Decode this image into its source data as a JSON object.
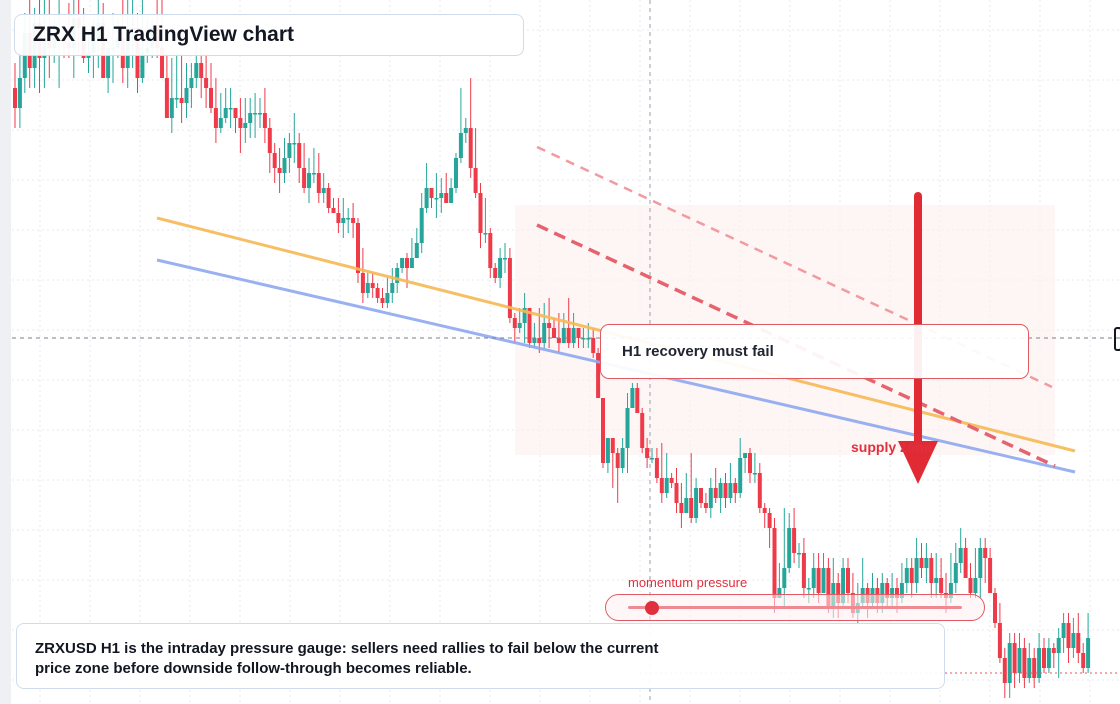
{
  "header": {
    "title": "ZRX H1 TradingView chart"
  },
  "annotations": {
    "callout": "H1 recovery must fail",
    "supply_label": "supply zone",
    "momentum_label": "momentum pressure",
    "momentum_level": 0.07
  },
  "footer": {
    "note": "ZRXUSD H1 is the intraday pressure gauge: sellers need rallies to fail below the current price zone before downside follow-through becomes reliable."
  },
  "colors": {
    "up": "#26a69a",
    "down": "#ef3a4a",
    "trend_orange": "#f7b955",
    "trend_blue": "#8fa9f0",
    "supply": "#e05a64",
    "arrow": "#e02b35"
  },
  "chart_data": {
    "type": "candlestick",
    "title": "ZRX H1 TradingView chart",
    "timeframe": "H1",
    "grid": true,
    "candles": [
      [
        0,
        50,
        46,
        55,
        42
      ],
      [
        1,
        46,
        52,
        57,
        42
      ],
      [
        2,
        52,
        61,
        65,
        49
      ],
      [
        3,
        61,
        54,
        68,
        50
      ],
      [
        4,
        54,
        63,
        66,
        50
      ],
      [
        5,
        63,
        56,
        72,
        49
      ],
      [
        6,
        56,
        60,
        73,
        50
      ],
      [
        7,
        60,
        58,
        68,
        52
      ],
      [
        8,
        58,
        60,
        64,
        55
      ],
      [
        9,
        60,
        60,
        74,
        50
      ],
      [
        10,
        60,
        59,
        63,
        56
      ],
      [
        11,
        59,
        58,
        67,
        56
      ],
      [
        12,
        58,
        64,
        69,
        52
      ],
      [
        13,
        64,
        62,
        71,
        57
      ],
      [
        14,
        62,
        56,
        66,
        55
      ],
      [
        15,
        56,
        57,
        61,
        53
      ],
      [
        16,
        57,
        60,
        64,
        52
      ],
      [
        17,
        60,
        63,
        68,
        54
      ],
      [
        18,
        63,
        52,
        67,
        52
      ],
      [
        19,
        52,
        58,
        62,
        49
      ],
      [
        20,
        58,
        58,
        65,
        51
      ],
      [
        21,
        58,
        60,
        64,
        56
      ],
      [
        22,
        60,
        54,
        70,
        51
      ],
      [
        23,
        54,
        61,
        68,
        50
      ],
      [
        24,
        61,
        62,
        74,
        54
      ],
      [
        25,
        62,
        52,
        65,
        49
      ],
      [
        26,
        52,
        57,
        70,
        51
      ],
      [
        27,
        57,
        58,
        64,
        55
      ],
      [
        28,
        58,
        62,
        64,
        56
      ],
      [
        29,
        62,
        58,
        69,
        56
      ],
      [
        30,
        58,
        52,
        70,
        52
      ],
      [
        31,
        52,
        44,
        57,
        44
      ],
      [
        32,
        44,
        48,
        56,
        41
      ],
      [
        33,
        48,
        48,
        57,
        46
      ],
      [
        34,
        48,
        47,
        57,
        43
      ],
      [
        35,
        47,
        50,
        55,
        44
      ],
      [
        36,
        50,
        52,
        55,
        46
      ],
      [
        37,
        52,
        55,
        60,
        50
      ],
      [
        38,
        55,
        52,
        57,
        48
      ],
      [
        39,
        52,
        50,
        57,
        46
      ],
      [
        40,
        50,
        46,
        55,
        45
      ],
      [
        41,
        46,
        42,
        52,
        39
      ],
      [
        42,
        42,
        44,
        49,
        41
      ],
      [
        43,
        44,
        46,
        50,
        43
      ],
      [
        44,
        46,
        46,
        50,
        42
      ],
      [
        45,
        46,
        44,
        46,
        41
      ],
      [
        46,
        44,
        42,
        48,
        37
      ],
      [
        47,
        42,
        43,
        48,
        39
      ],
      [
        48,
        43,
        45,
        48,
        40
      ],
      [
        49,
        45,
        45,
        49,
        40
      ],
      [
        50,
        45,
        45,
        48,
        42
      ],
      [
        51,
        45,
        42,
        50,
        39
      ],
      [
        52,
        42,
        37,
        44,
        33
      ],
      [
        53,
        37,
        34,
        39,
        31
      ],
      [
        54,
        34,
        33,
        38,
        29
      ],
      [
        55,
        33,
        36,
        40,
        31
      ],
      [
        56,
        36,
        39,
        41,
        33
      ],
      [
        57,
        39,
        39,
        45,
        35
      ],
      [
        58,
        39,
        34,
        41,
        31
      ],
      [
        59,
        34,
        30,
        39,
        29
      ],
      [
        60,
        30,
        33,
        36,
        27
      ],
      [
        61,
        33,
        33,
        38,
        31
      ],
      [
        62,
        33,
        29,
        37,
        27
      ],
      [
        63,
        29,
        30,
        33,
        27
      ],
      [
        64,
        30,
        26,
        31,
        25
      ],
      [
        65,
        26,
        25,
        28,
        25
      ],
      [
        66,
        25,
        23,
        28,
        21
      ],
      [
        67,
        23,
        24,
        28,
        20
      ],
      [
        68,
        24,
        24,
        26,
        21
      ],
      [
        69,
        24,
        23,
        27,
        20
      ],
      [
        70,
        23,
        13,
        24,
        11
      ],
      [
        71,
        13,
        9,
        18,
        7
      ],
      [
        72,
        9,
        11,
        13,
        8
      ],
      [
        73,
        11,
        10,
        13,
        8
      ],
      [
        74,
        10,
        8,
        11,
        7
      ],
      [
        75,
        8,
        7,
        10,
        6
      ],
      [
        76,
        7,
        9,
        12,
        6
      ],
      [
        77,
        9,
        11,
        14,
        7
      ],
      [
        78,
        11,
        14,
        15,
        9
      ],
      [
        79,
        14,
        16,
        16,
        13
      ],
      [
        80,
        16,
        14,
        17,
        10
      ],
      [
        81,
        14,
        16,
        20,
        14
      ],
      [
        82,
        16,
        19,
        22,
        16
      ],
      [
        83,
        19,
        26,
        29,
        17
      ],
      [
        84,
        26,
        30,
        35,
        25
      ],
      [
        85,
        30,
        28,
        30,
        26
      ],
      [
        86,
        28,
        28,
        33,
        24
      ],
      [
        87,
        28,
        29,
        32,
        25
      ],
      [
        88,
        29,
        27,
        33,
        27
      ],
      [
        89,
        27,
        30,
        32,
        27
      ],
      [
        90,
        30,
        36,
        37,
        29
      ],
      [
        91,
        36,
        41,
        50,
        35
      ],
      [
        92,
        41,
        42,
        44,
        39
      ],
      [
        93,
        42,
        34,
        52,
        32
      ],
      [
        94,
        34,
        29,
        42,
        28
      ],
      [
        95,
        29,
        21,
        31,
        18
      ],
      [
        96,
        21,
        21,
        28,
        19
      ],
      [
        97,
        21,
        14,
        22,
        12
      ],
      [
        98,
        14,
        12,
        15,
        11
      ],
      [
        99,
        12,
        16,
        18,
        10
      ],
      [
        100,
        16,
        16,
        19,
        13
      ],
      [
        101,
        16,
        4,
        18,
        3
      ],
      [
        102,
        4,
        2,
        5,
        -1
      ],
      [
        103,
        2,
        3,
        6,
        1
      ],
      [
        104,
        3,
        6,
        9,
        -1
      ],
      [
        105,
        6,
        -1,
        6,
        -2
      ],
      [
        106,
        -1,
        0,
        3,
        -2
      ],
      [
        107,
        0,
        -1,
        6,
        -3
      ],
      [
        108,
        -1,
        3,
        7,
        -2
      ],
      [
        109,
        3,
        2,
        8,
        -2
      ],
      [
        110,
        2,
        0,
        4,
        0
      ],
      [
        111,
        0,
        -1,
        5,
        -3
      ],
      [
        112,
        -1,
        2,
        5,
        -1
      ],
      [
        113,
        2,
        -1,
        8,
        -2
      ],
      [
        114,
        -1,
        2,
        5,
        -2
      ],
      [
        115,
        2,
        0,
        2,
        -2
      ],
      [
        116,
        0,
        0,
        2,
        -2
      ],
      [
        117,
        0,
        0,
        3,
        -2
      ],
      [
        118,
        0,
        -3,
        2,
        -4
      ],
      [
        119,
        -3,
        -12,
        -2,
        -12
      ],
      [
        120,
        -12,
        -25,
        -12,
        -26
      ],
      [
        121,
        -25,
        -20,
        -20,
        -27
      ],
      [
        122,
        -20,
        -23,
        -20,
        -30
      ],
      [
        123,
        -23,
        -26,
        -22,
        -33
      ],
      [
        124,
        -26,
        -22,
        -20,
        -27
      ],
      [
        125,
        -22,
        -14,
        -11,
        -27
      ],
      [
        126,
        -14,
        -10,
        -9,
        -14
      ],
      [
        127,
        -10,
        -15,
        -9,
        -15
      ],
      [
        128,
        -15,
        -22,
        -14,
        -23
      ],
      [
        129,
        -22,
        -24,
        -20,
        -26
      ],
      [
        130,
        -24,
        -24,
        -22,
        -25
      ],
      [
        131,
        -24,
        -28,
        -22,
        -29
      ],
      [
        132,
        -28,
        -31,
        -21,
        -33
      ],
      [
        133,
        -31,
        -28,
        -23,
        -32
      ],
      [
        134,
        -28,
        -29,
        -27,
        -30
      ],
      [
        135,
        -29,
        -33,
        -26,
        -35
      ],
      [
        136,
        -33,
        -35,
        -29,
        -38
      ],
      [
        137,
        -35,
        -32,
        -27,
        -35
      ],
      [
        138,
        -32,
        -36,
        -23,
        -37
      ],
      [
        139,
        -36,
        -30,
        -28,
        -37
      ],
      [
        140,
        -30,
        -33,
        -30,
        -34
      ],
      [
        141,
        -33,
        -34,
        -31,
        -35
      ],
      [
        142,
        -34,
        -30,
        -28,
        -36
      ],
      [
        143,
        -30,
        -32,
        -26,
        -33
      ],
      [
        144,
        -32,
        -29,
        -28,
        -35
      ],
      [
        145,
        -29,
        -32,
        -27,
        -34
      ],
      [
        146,
        -32,
        -29,
        -25,
        -33
      ],
      [
        147,
        -29,
        -31,
        -28,
        -33
      ],
      [
        148,
        -31,
        -24,
        -20,
        -32
      ],
      [
        149,
        -24,
        -23,
        -23,
        -27
      ],
      [
        150,
        -23,
        -27,
        -22,
        -29
      ],
      [
        151,
        -27,
        -27,
        -23,
        -29
      ],
      [
        152,
        -27,
        -34,
        -25,
        -35
      ],
      [
        153,
        -34,
        -35,
        -33,
        -38
      ],
      [
        154,
        -35,
        -38,
        -34,
        -42
      ],
      [
        155,
        -38,
        -52,
        -36,
        -55
      ],
      [
        156,
        -52,
        -50,
        -45,
        -52
      ],
      [
        157,
        -50,
        -46,
        -34,
        -54
      ],
      [
        158,
        -46,
        -38,
        -35,
        -47
      ],
      [
        159,
        -38,
        -43,
        -34,
        -45
      ],
      [
        160,
        -43,
        -43,
        -41,
        -46
      ],
      [
        161,
        -43,
        -50,
        -40,
        -52
      ],
      [
        162,
        -50,
        -50,
        -48,
        -53
      ],
      [
        163,
        -50,
        -46,
        -43,
        -52
      ],
      [
        164,
        -46,
        -51,
        -43,
        -53
      ],
      [
        165,
        -51,
        -46,
        -43,
        -51
      ],
      [
        166,
        -46,
        -54,
        -44,
        -55
      ],
      [
        167,
        -54,
        -49,
        -44,
        -56
      ],
      [
        168,
        -49,
        -53,
        -47,
        -56
      ],
      [
        169,
        -53,
        -46,
        -44,
        -54
      ],
      [
        170,
        -46,
        -51,
        -44,
        -53
      ],
      [
        171,
        -51,
        -55,
        -47,
        -56
      ],
      [
        172,
        -55,
        -53,
        -49,
        -57
      ],
      [
        173,
        -53,
        -50,
        -44,
        -54
      ],
      [
        174,
        -50,
        -53,
        -49,
        -56
      ],
      [
        175,
        -53,
        -50,
        -47,
        -54
      ],
      [
        176,
        -50,
        -53,
        -48,
        -55
      ],
      [
        177,
        -53,
        -49,
        -47,
        -55
      ],
      [
        178,
        -49,
        -52,
        -48,
        -54
      ],
      [
        179,
        -52,
        -50,
        -47,
        -54
      ],
      [
        180,
        -50,
        -52,
        -48,
        -55
      ],
      [
        181,
        -52,
        -49,
        -45,
        -53
      ],
      [
        182,
        -49,
        -46,
        -44,
        -51
      ],
      [
        183,
        -46,
        -49,
        -44,
        -52
      ],
      [
        184,
        -49,
        -44,
        -40,
        -51
      ],
      [
        185,
        -44,
        -46,
        -41,
        -48
      ],
      [
        186,
        -46,
        -44,
        -41,
        -49
      ],
      [
        187,
        -44,
        -49,
        -43,
        -52
      ],
      [
        188,
        -49,
        -48,
        -43,
        -52
      ],
      [
        189,
        -48,
        -51,
        -44,
        -52
      ],
      [
        190,
        -51,
        -52,
        -47,
        -55
      ],
      [
        191,
        -52,
        -49,
        -43,
        -53
      ],
      [
        192,
        -49,
        -45,
        -41,
        -51
      ],
      [
        193,
        -45,
        -42,
        -38,
        -47
      ],
      [
        194,
        -42,
        -48,
        -40,
        -48
      ],
      [
        195,
        -48,
        -51,
        -45,
        -52
      ],
      [
        196,
        -51,
        -48,
        -42,
        -52
      ],
      [
        197,
        -48,
        -42,
        -40,
        -52
      ],
      [
        198,
        -42,
        -44,
        -40,
        -49
      ],
      [
        199,
        -44,
        -51,
        -42,
        -51
      ],
      [
        200,
        -51,
        -57,
        -50,
        -58
      ],
      [
        201,
        -57,
        -64,
        -53,
        -65
      ],
      [
        202,
        -64,
        -69,
        -62,
        -72
      ],
      [
        203,
        -69,
        -61,
        -59,
        -72
      ],
      [
        204,
        -61,
        -67,
        -59,
        -70
      ],
      [
        205,
        -67,
        -62,
        -59,
        -69
      ],
      [
        206,
        -62,
        -68,
        -60,
        -70
      ],
      [
        207,
        -68,
        -64,
        -61,
        -69
      ],
      [
        208,
        -64,
        -68,
        -62,
        -70
      ],
      [
        209,
        -68,
        -62,
        -59,
        -69
      ],
      [
        210,
        -62,
        -66,
        -60,
        -67
      ],
      [
        211,
        -66,
        -62,
        -60,
        -67
      ],
      [
        212,
        -62,
        -63,
        -61,
        -66
      ],
      [
        213,
        -63,
        -60,
        -58,
        -68
      ],
      [
        214,
        -60,
        -57,
        -55,
        -63
      ],
      [
        215,
        -57,
        -62,
        -55,
        -65
      ],
      [
        216,
        -62,
        -59,
        -56,
        -64
      ],
      [
        217,
        -59,
        -63,
        -55,
        -65
      ],
      [
        218,
        -63,
        -66,
        -61,
        -67
      ],
      [
        219,
        -66,
        -60,
        -55,
        -67
      ]
    ]
  }
}
